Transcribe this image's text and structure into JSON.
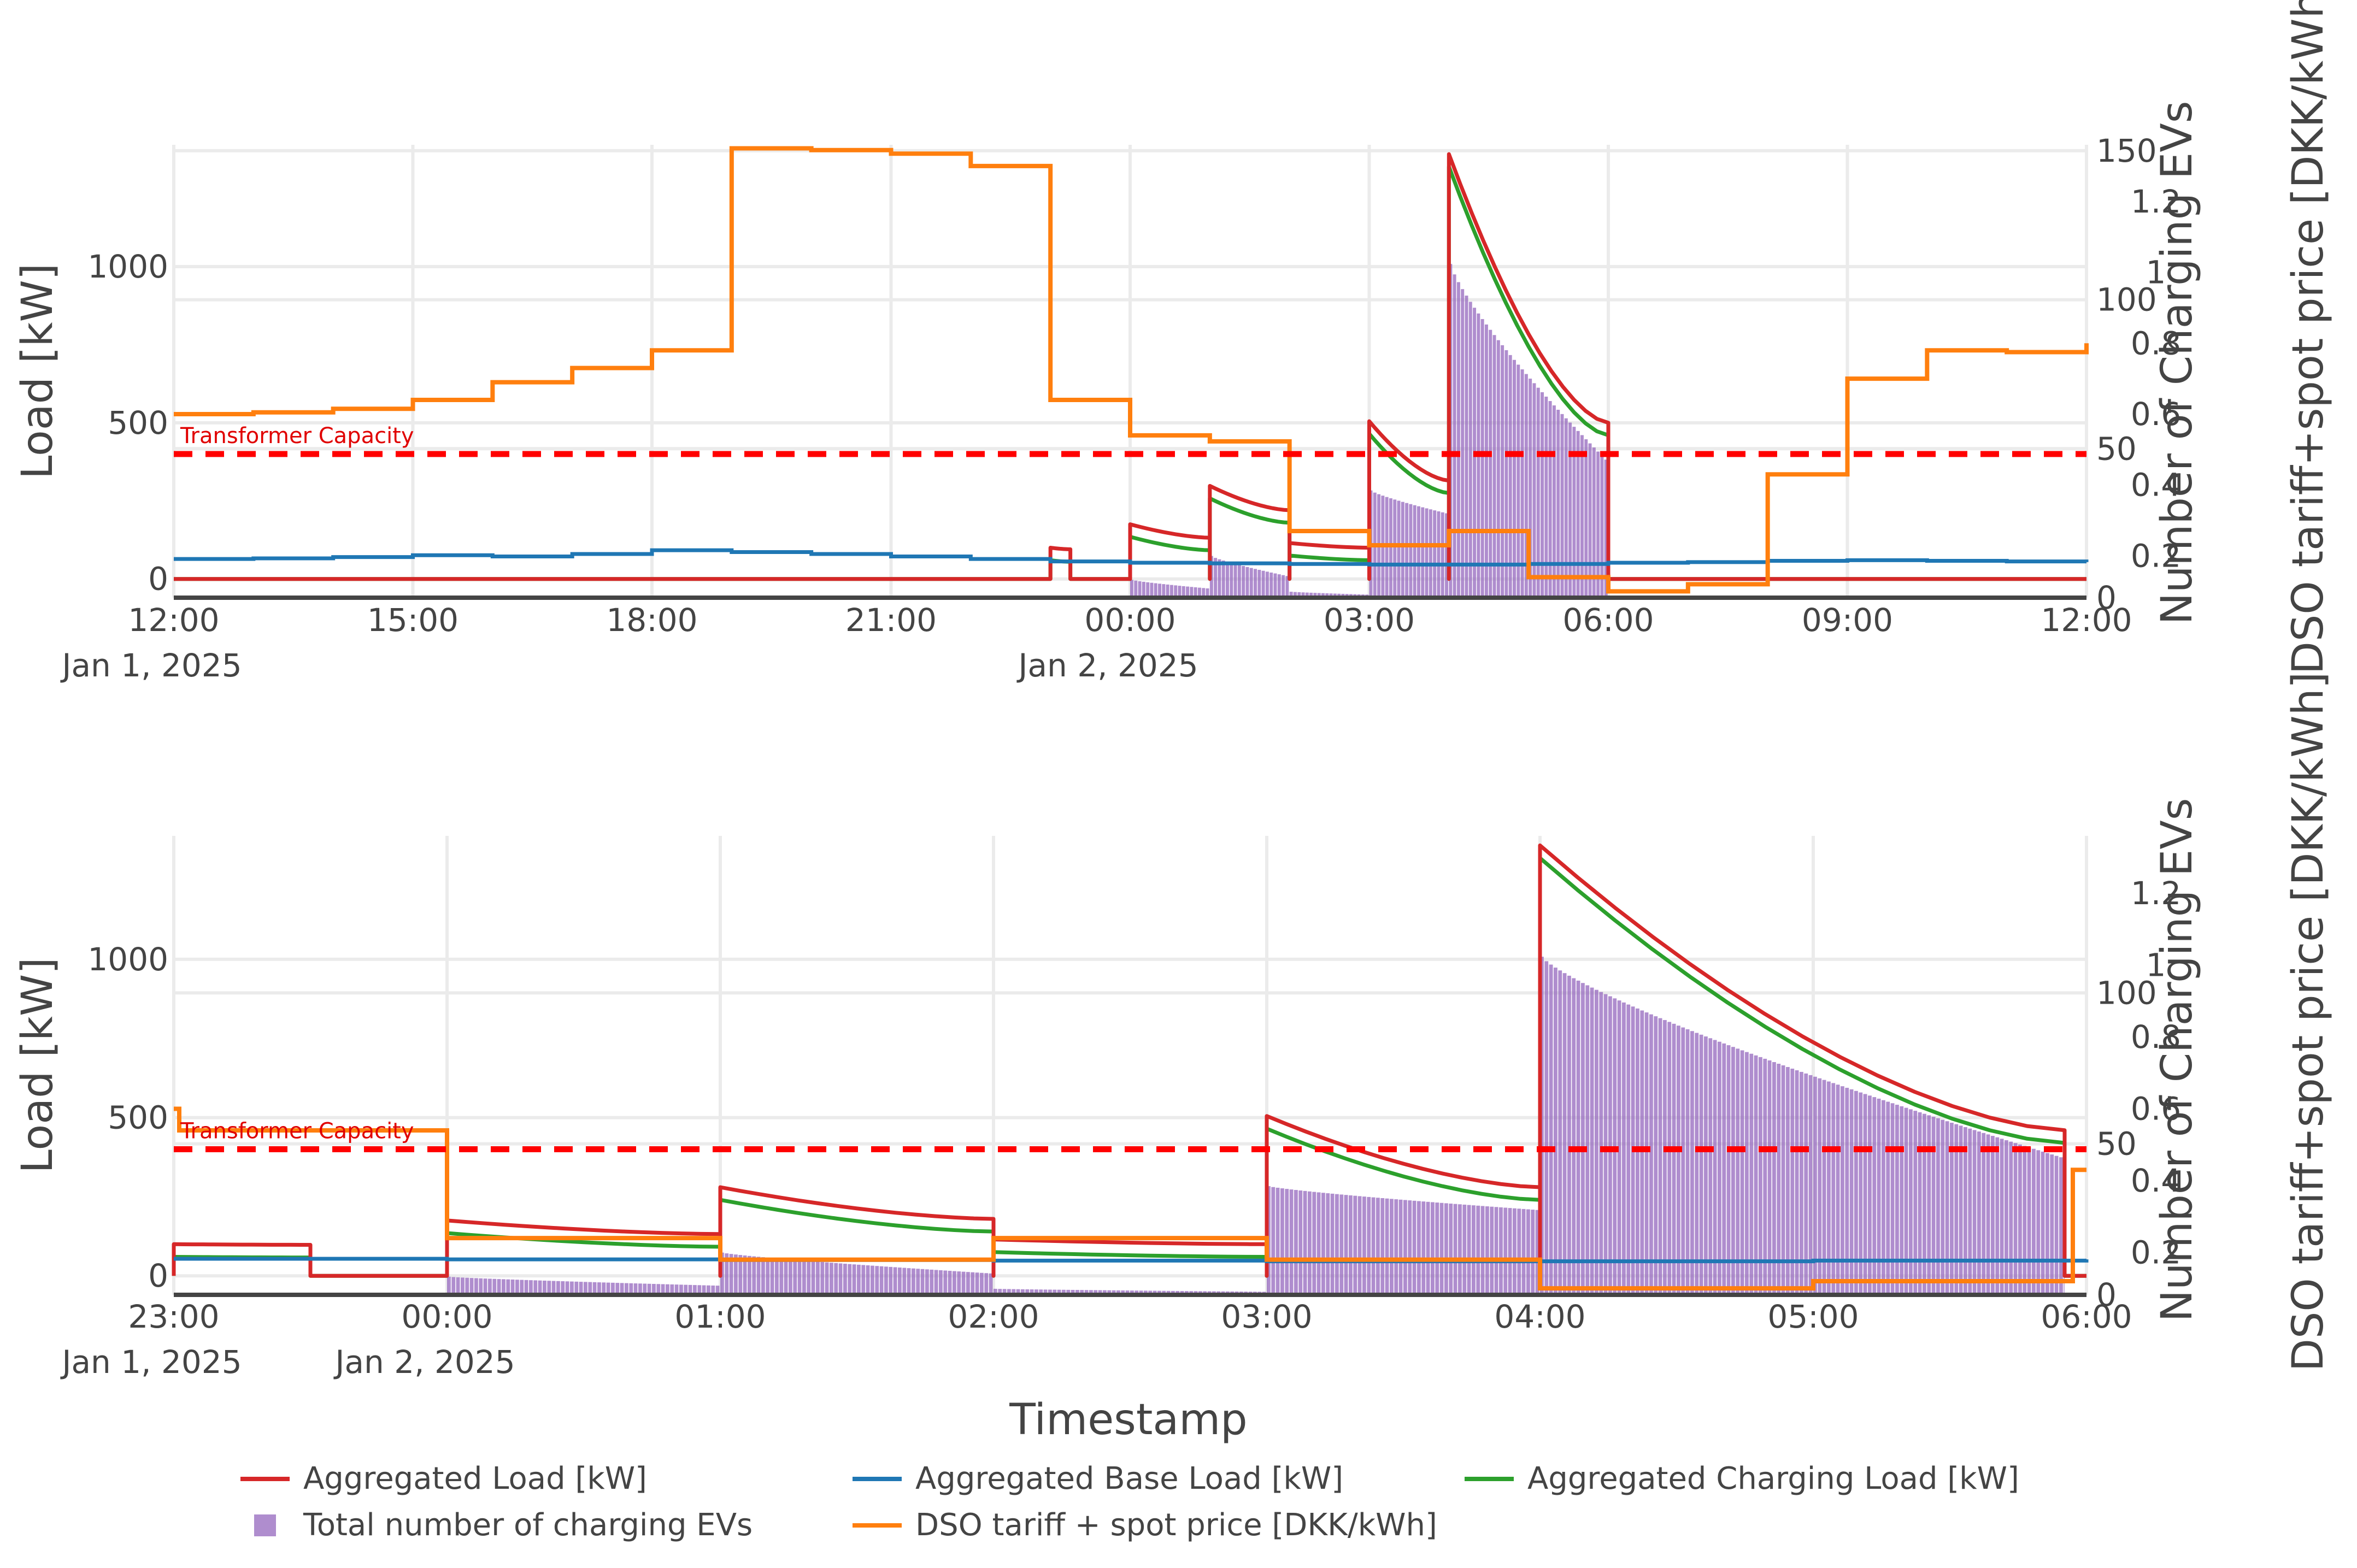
{
  "chart_data": [
    {
      "type": "line",
      "panel": "overview",
      "ylabel": "Load [kW]",
      "y2label": "Number of Charging EVs",
      "y3label": "DSO tariff+spot price [DKK/kWh]",
      "ylim": [
        -60,
        1390
      ],
      "y2lim": [
        0,
        152
      ],
      "y3lim": [
        0.082,
        1.36
      ],
      "y_ticks": [
        0,
        500,
        1000
      ],
      "y_tick_labels": [
        "0",
        "500",
        "1000"
      ],
      "y2_ticks": [
        0,
        50,
        100,
        150
      ],
      "y2_tick_labels": [
        "0",
        "50",
        "100",
        "150"
      ],
      "y3_ticks": [
        0.2,
        0.4,
        0.6,
        0.8,
        1.0,
        1.2
      ],
      "y3_tick_labels": [
        "0.2",
        "0.4",
        "0.6",
        "0.8",
        "1",
        "1.2"
      ],
      "x_range_hours": [
        12,
        36
      ],
      "x_ticks": [
        {
          "h": 12,
          "line1": "12:00",
          "line2": "Jan 1, 2025"
        },
        {
          "h": 15,
          "line1": "15:00",
          "line2": ""
        },
        {
          "h": 18,
          "line1": "18:00",
          "line2": ""
        },
        {
          "h": 21,
          "line1": "21:00",
          "line2": ""
        },
        {
          "h": 24,
          "line1": "00:00",
          "line2": "Jan 2, 2025"
        },
        {
          "h": 27,
          "line1": "03:00",
          "line2": ""
        },
        {
          "h": 30,
          "line1": "06:00",
          "line2": ""
        },
        {
          "h": 33,
          "line1": "09:00",
          "line2": ""
        },
        {
          "h": 36,
          "line1": "12:00",
          "line2": ""
        }
      ],
      "transformer_capacity_kw": 400,
      "transformer_label": "Transformer Capacity",
      "base_load": [
        [
          12,
          64
        ],
        [
          13,
          66
        ],
        [
          14,
          70
        ],
        [
          15,
          76
        ],
        [
          16,
          72
        ],
        [
          17,
          80
        ],
        [
          18,
          92
        ],
        [
          19,
          86
        ],
        [
          20,
          80
        ],
        [
          21,
          72
        ],
        [
          22,
          64
        ],
        [
          23,
          56
        ],
        [
          24,
          52
        ],
        [
          25,
          50
        ],
        [
          26,
          48
        ],
        [
          27,
          46
        ],
        [
          28,
          46
        ],
        [
          29,
          48
        ],
        [
          30,
          52
        ],
        [
          31,
          54
        ],
        [
          32,
          58
        ],
        [
          33,
          60
        ],
        [
          34,
          58
        ],
        [
          35,
          56
        ],
        [
          36,
          54
        ]
      ],
      "price": [
        [
          12,
          0.6
        ],
        [
          13,
          0.605
        ],
        [
          14,
          0.615
        ],
        [
          15,
          0.64
        ],
        [
          16,
          0.69
        ],
        [
          17,
          0.73
        ],
        [
          18,
          0.78
        ],
        [
          19,
          1.35
        ],
        [
          20,
          1.345
        ],
        [
          21,
          1.335
        ],
        [
          22,
          1.3
        ],
        [
          23,
          0.64
        ],
        [
          24,
          0.54
        ],
        [
          25,
          0.523
        ],
        [
          26,
          0.27
        ],
        [
          27,
          0.23
        ],
        [
          28,
          0.27
        ],
        [
          29,
          0.14
        ],
        [
          30,
          0.1
        ],
        [
          31,
          0.12
        ],
        [
          32,
          0.43
        ],
        [
          33,
          0.7
        ],
        [
          34,
          0.78
        ],
        [
          35,
          0.775
        ],
        [
          36,
          0.8
        ]
      ],
      "events": [
        {
          "start": 23.0,
          "end": 23.25,
          "evs_start": 0,
          "evs_end": 0,
          "load_start": 60,
          "load_end": 55
        },
        {
          "start": 24.0,
          "end": 25.0,
          "evs_start": 6,
          "evs_end": 3,
          "load_start": 135,
          "load_end": 92
        },
        {
          "start": 25.0,
          "end": 26.0,
          "evs_start": 14,
          "evs_end": 7,
          "load_start": 258,
          "load_end": 180
        },
        {
          "start": 26.0,
          "end": 27.0,
          "evs_start": 2,
          "evs_end": 1,
          "load_start": 75,
          "load_end": 60
        },
        {
          "start": 27.0,
          "end": 28.0,
          "evs_start": 36,
          "evs_end": 28,
          "load_start": 465,
          "load_end": 275
        },
        {
          "start": 28.0,
          "end": 30.0,
          "evs_start": 112,
          "evs_end": 45,
          "load_start": 1320,
          "load_end": 460
        }
      ]
    },
    {
      "type": "line",
      "panel": "zoom",
      "xlabel": "Timestamp",
      "ylabel": "Load [kW]",
      "y2label": "Number of Charging EVs",
      "y3label": "DSO tariff+spot price [DKK/kWh]",
      "ylim": [
        -60,
        1390
      ],
      "y2lim": [
        0,
        152
      ],
      "y3lim": [
        0.082,
        1.36
      ],
      "y_ticks": [
        0,
        500,
        1000
      ],
      "y_tick_labels": [
        "0",
        "500",
        "1000"
      ],
      "y2_ticks": [
        0,
        50,
        100
      ],
      "y2_tick_labels": [
        "0",
        "50",
        "100"
      ],
      "y3_ticks": [
        0.2,
        0.4,
        0.6,
        0.8,
        1.0,
        1.2
      ],
      "y3_tick_labels": [
        "0.2",
        "0.4",
        "0.6",
        "0.8",
        "1",
        "1.2"
      ],
      "x_range_hours": [
        23,
        30
      ],
      "x_ticks": [
        {
          "h": 23,
          "line1": "23:00",
          "line2": "Jan 1, 2025"
        },
        {
          "h": 24,
          "line1": "00:00",
          "line2": "Jan 2, 2025"
        },
        {
          "h": 25,
          "line1": "01:00",
          "line2": ""
        },
        {
          "h": 26,
          "line1": "02:00",
          "line2": ""
        },
        {
          "h": 27,
          "line1": "03:00",
          "line2": ""
        },
        {
          "h": 28,
          "line1": "04:00",
          "line2": ""
        },
        {
          "h": 29,
          "line1": "05:00",
          "line2": ""
        },
        {
          "h": 30,
          "line1": "06:00",
          "line2": ""
        }
      ],
      "transformer_capacity_kw": 400,
      "transformer_label": "Transformer Capacity",
      "base_load": [
        [
          23,
          54
        ],
        [
          24,
          52
        ],
        [
          25,
          50
        ],
        [
          26,
          48
        ],
        [
          27,
          46
        ],
        [
          28,
          46
        ],
        [
          29,
          48
        ],
        [
          30,
          52
        ]
      ],
      "price": [
        [
          23,
          0.6
        ],
        [
          23.02,
          0.54
        ],
        [
          24,
          0.24
        ],
        [
          25,
          0.18
        ],
        [
          26,
          0.24
        ],
        [
          27,
          0.18
        ],
        [
          28,
          0.1
        ],
        [
          29,
          0.12
        ],
        [
          29.95,
          0.43
        ],
        [
          30,
          0.43
        ]
      ],
      "events": [
        {
          "start": 23.0,
          "end": 23.5,
          "evs_start": 0,
          "evs_end": 0,
          "load_start": 60,
          "load_end": 58
        },
        {
          "start": 24.0,
          "end": 25.0,
          "evs_start": 6,
          "evs_end": 3,
          "load_start": 135,
          "load_end": 92
        },
        {
          "start": 25.0,
          "end": 26.0,
          "evs_start": 14,
          "evs_end": 7,
          "load_start": 240,
          "load_end": 140
        },
        {
          "start": 26.0,
          "end": 27.0,
          "evs_start": 2,
          "evs_end": 1,
          "load_start": 75,
          "load_end": 60
        },
        {
          "start": 27.0,
          "end": 28.0,
          "evs_start": 36,
          "evs_end": 28,
          "load_start": 465,
          "load_end": 240
        },
        {
          "start": 28.0,
          "end": 29.92,
          "evs_start": 112,
          "evs_end": 45,
          "load_start": 1320,
          "load_end": 420
        }
      ]
    }
  ],
  "legend": [
    {
      "label": "Aggregated Load [kW]",
      "color": "#d62728",
      "kind": "line"
    },
    {
      "label": "Aggregated Base Load [kW]",
      "color": "#1f77b4",
      "kind": "line"
    },
    {
      "label": "Aggregated Charging Load [kW]",
      "color": "#2ca02c",
      "kind": "line"
    },
    {
      "label": "Total number of charging EVs",
      "color": "#9467bd",
      "kind": "square"
    },
    {
      "label": "DSO tariff + spot price [DKK/kWh]",
      "color": "#ff7f0e",
      "kind": "line"
    }
  ],
  "colors": {
    "load": "#d62728",
    "base": "#1f77b4",
    "charging": "#2ca02c",
    "evs": "#9467bd",
    "price": "#ff7f0e",
    "capacity": "#ff0000",
    "grid": "#ebebeb",
    "zero": "#444444"
  }
}
